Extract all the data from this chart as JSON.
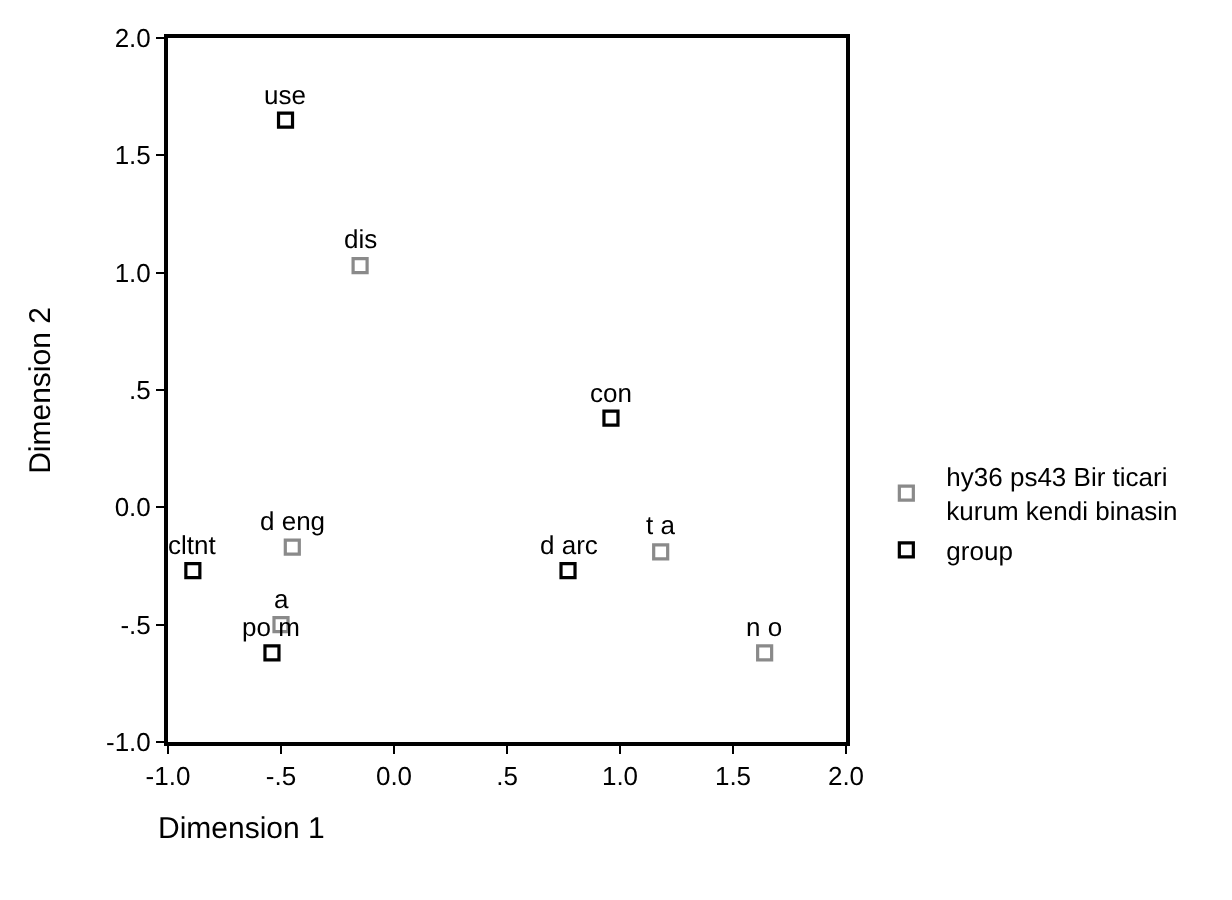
{
  "chart_data": {
    "type": "scatter",
    "xlabel": "Dimension 1",
    "ylabel": "Dimension 2",
    "series": [
      {
        "name": "hy36 ps43 Bir ticari kurum kendi binasin",
        "color": "#8a8a8a",
        "x": [
          -0.15,
          1.18,
          1.64,
          -0.45,
          -0.5
        ],
        "values": [
          1.03,
          -0.19,
          -0.62,
          -0.17,
          -0.5
        ]
      },
      {
        "name": "group",
        "color": "#000000",
        "x": [
          -0.48,
          0.96,
          0.77,
          -0.89,
          -0.54
        ],
        "values": [
          1.65,
          0.38,
          -0.27,
          -0.27,
          -0.62
        ]
      }
    ],
    "annotations": [
      {
        "text": "dis",
        "x": -0.15,
        "y": 1.03
      },
      {
        "text": "t a",
        "x": 1.18,
        "y": -0.19
      },
      {
        "text": "n o",
        "x": 1.64,
        "y": -0.62
      },
      {
        "text": "d eng",
        "x": -0.45,
        "y": -0.17
      },
      {
        "text": "a",
        "x": -0.5,
        "y": -0.5
      },
      {
        "text": "use",
        "x": -0.48,
        "y": 1.65
      },
      {
        "text": "con",
        "x": 0.96,
        "y": 0.38
      },
      {
        "text": "d arc",
        "x": 0.77,
        "y": -0.27
      },
      {
        "text": "cltnt",
        "x": -0.89,
        "y": -0.27
      },
      {
        "text": "po m",
        "x": -0.54,
        "y": -0.62
      }
    ],
    "xlim": [
      -1.0,
      2.0
    ],
    "ylim": [
      -1.0,
      2.0
    ],
    "xticks": [
      {
        "value": -1.0,
        "label": "-1.0"
      },
      {
        "value": -0.5,
        "label": "-.5"
      },
      {
        "value": 0,
        "label": "0.0"
      },
      {
        "value": 0.5,
        "label": ".5"
      },
      {
        "value": 1.0,
        "label": "1.0"
      },
      {
        "value": 1.5,
        "label": "1.5"
      },
      {
        "value": 2.0,
        "label": "2.0"
      }
    ],
    "yticks": [
      {
        "value": -1.0,
        "label": "-1.0"
      },
      {
        "value": -0.5,
        "label": "-.5"
      },
      {
        "value": 0,
        "label": "0.0"
      },
      {
        "value": 0.5,
        "label": ".5"
      },
      {
        "value": 1.0,
        "label": "1.0"
      },
      {
        "value": 1.5,
        "label": "1.5"
      },
      {
        "value": 2.0,
        "label": "2.0"
      }
    ],
    "marker": "square",
    "legend": "right"
  }
}
